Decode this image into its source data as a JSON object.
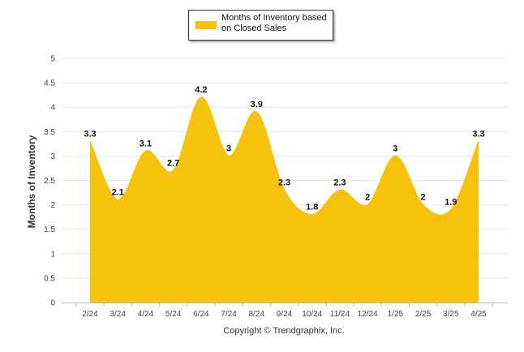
{
  "chart_data": {
    "type": "area",
    "title": "",
    "xlabel": "",
    "ylabel": "Months of Inventory",
    "categories": [
      "2/24",
      "3/24",
      "4/24",
      "5/24",
      "6/24",
      "7/24",
      "8/24",
      "9/24",
      "10/24",
      "11/24",
      "12/24",
      "1/25",
      "2/25",
      "3/25",
      "4/25"
    ],
    "series": [
      {
        "name": "Months of Inventory based on Closed Sales",
        "values": [
          3.3,
          2.1,
          3.1,
          2.7,
          4.2,
          3,
          3.9,
          2.3,
          1.8,
          2.3,
          2,
          3,
          2,
          1.9,
          3.3
        ],
        "labels": [
          "3.3",
          "2.1",
          "3.1",
          "2.7",
          "4.2",
          "3",
          "3.9",
          "2.3",
          "1.8",
          "2.3",
          "2",
          "3",
          "2",
          "1.9",
          "3.3"
        ]
      }
    ],
    "ylim": [
      0,
      5
    ],
    "yticks": [
      "0",
      "0.5",
      "1",
      "1.5",
      "2",
      "2.5",
      "3",
      "3.5",
      "4",
      "4.5",
      "5"
    ],
    "grid": true,
    "legend_position": "top-center",
    "fill_color": "#F7C20C",
    "grid_color": "#E8E8E8"
  },
  "legend": {
    "label": "Months of Inventory based on Closed Sales"
  },
  "footer": {
    "copyright": "Copyright © Trendgraphix, Inc."
  }
}
